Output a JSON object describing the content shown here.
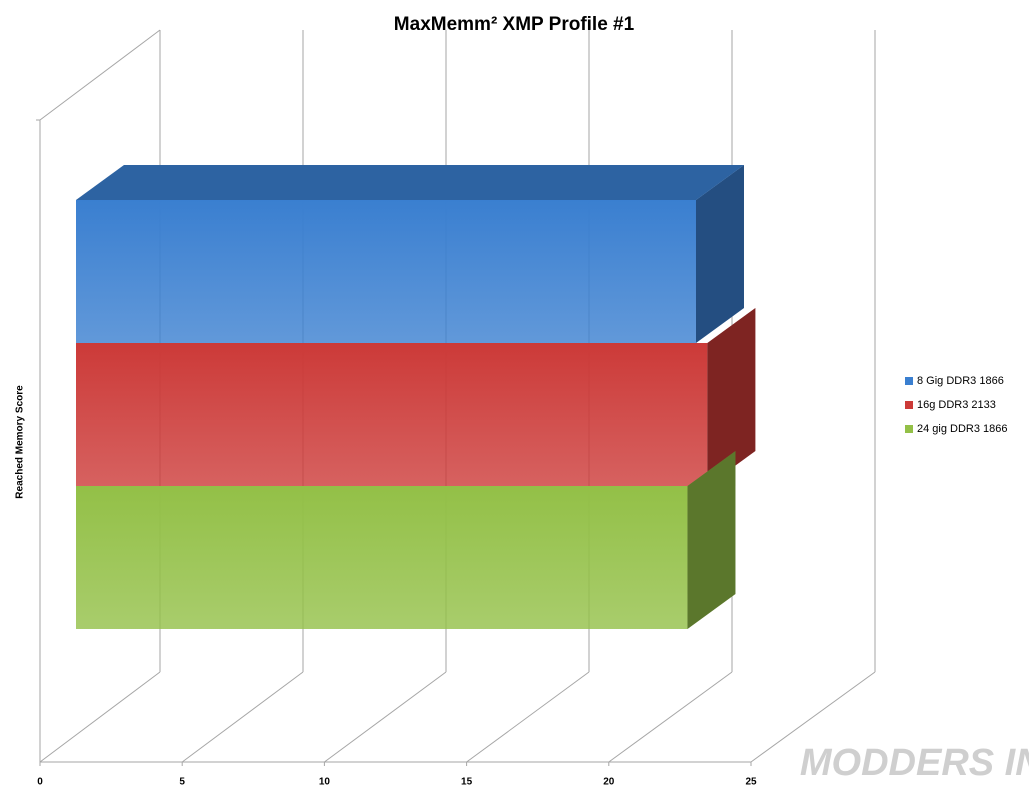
{
  "chart_data": {
    "type": "bar3d",
    "title": "MaxMemm² XMP Profile #1",
    "y_label": "Reached Memory Score",
    "watermark": "MODDERS INC",
    "series": [
      {
        "name": "8 Gig DDR3 1866",
        "color": "#3a7fd0",
        "values": [
          21.8
        ]
      },
      {
        "name": "16g DDR3 2133",
        "color": "#cc3a38",
        "values": [
          22.2
        ]
      },
      {
        "name": "24 gig DDR3 1866",
        "color": "#93c047",
        "values": [
          21.5
        ]
      }
    ],
    "xlim": [
      0,
      25
    ],
    "xticks": [
      0,
      5,
      10,
      15,
      20,
      25
    ],
    "grid": true,
    "legend": "right"
  }
}
